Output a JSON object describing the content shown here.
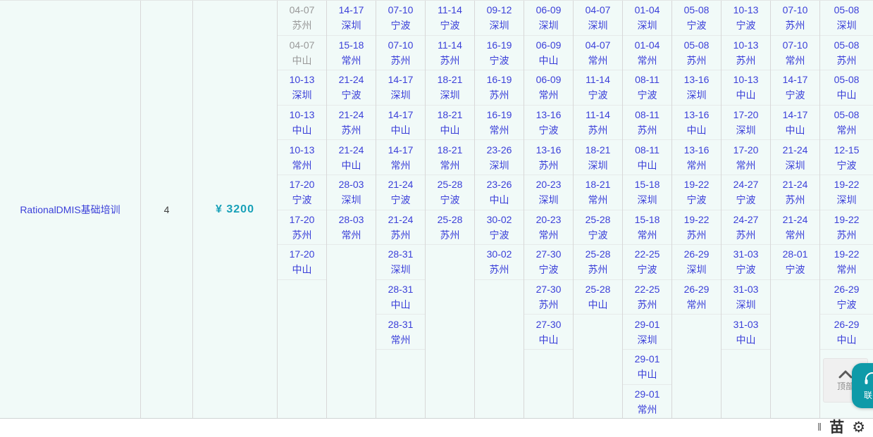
{
  "colors": {
    "accent": "#3a3fd9",
    "muted": "#999999",
    "price": "#17a0b8",
    "teal": "#0e9aa8",
    "table_bg": "#f1faf8"
  },
  "course": {
    "name": "RationalDMIS基础培训",
    "days": "4",
    "price": "¥ 3200"
  },
  "schedule": {
    "columns": [
      [
        {
          "d": "04-07",
          "c": "苏州",
          "muted": true
        },
        {
          "d": "04-07",
          "c": "中山",
          "muted": true
        },
        {
          "d": "10-13",
          "c": "深圳"
        },
        {
          "d": "10-13",
          "c": "中山"
        },
        {
          "d": "10-13",
          "c": "常州"
        },
        {
          "d": "17-20",
          "c": "宁波"
        },
        {
          "d": "17-20",
          "c": "苏州"
        },
        {
          "d": "17-20",
          "c": "中山"
        }
      ],
      [
        {
          "d": "14-17",
          "c": "深圳"
        },
        {
          "d": "15-18",
          "c": "常州"
        },
        {
          "d": "21-24",
          "c": "宁波"
        },
        {
          "d": "21-24",
          "c": "苏州"
        },
        {
          "d": "21-24",
          "c": "中山"
        },
        {
          "d": "28-03",
          "c": "深圳"
        },
        {
          "d": "28-03",
          "c": "常州"
        }
      ],
      [
        {
          "d": "07-10",
          "c": "宁波"
        },
        {
          "d": "07-10",
          "c": "苏州"
        },
        {
          "d": "14-17",
          "c": "深圳"
        },
        {
          "d": "14-17",
          "c": "中山"
        },
        {
          "d": "14-17",
          "c": "常州"
        },
        {
          "d": "21-24",
          "c": "宁波"
        },
        {
          "d": "21-24",
          "c": "苏州"
        },
        {
          "d": "28-31",
          "c": "深圳"
        },
        {
          "d": "28-31",
          "c": "中山"
        },
        {
          "d": "28-31",
          "c": "常州"
        }
      ],
      [
        {
          "d": "11-14",
          "c": "宁波"
        },
        {
          "d": "11-14",
          "c": "苏州"
        },
        {
          "d": "18-21",
          "c": "深圳"
        },
        {
          "d": "18-21",
          "c": "中山"
        },
        {
          "d": "18-21",
          "c": "常州"
        },
        {
          "d": "25-28",
          "c": "宁波"
        },
        {
          "d": "25-28",
          "c": "苏州"
        }
      ],
      [
        {
          "d": "09-12",
          "c": "深圳"
        },
        {
          "d": "16-19",
          "c": "宁波"
        },
        {
          "d": "16-19",
          "c": "苏州"
        },
        {
          "d": "16-19",
          "c": "常州"
        },
        {
          "d": "23-26",
          "c": "深圳"
        },
        {
          "d": "23-26",
          "c": "中山"
        },
        {
          "d": "30-02",
          "c": "宁波"
        },
        {
          "d": "30-02",
          "c": "苏州"
        }
      ],
      [
        {
          "d": "06-09",
          "c": "深圳"
        },
        {
          "d": "06-09",
          "c": "中山"
        },
        {
          "d": "06-09",
          "c": "常州"
        },
        {
          "d": "13-16",
          "c": "宁波"
        },
        {
          "d": "13-16",
          "c": "苏州"
        },
        {
          "d": "20-23",
          "c": "深圳"
        },
        {
          "d": "20-23",
          "c": "常州"
        },
        {
          "d": "27-30",
          "c": "宁波"
        },
        {
          "d": "27-30",
          "c": "苏州"
        },
        {
          "d": "27-30",
          "c": "中山"
        }
      ],
      [
        {
          "d": "04-07",
          "c": "深圳"
        },
        {
          "d": "04-07",
          "c": "常州"
        },
        {
          "d": "11-14",
          "c": "宁波"
        },
        {
          "d": "11-14",
          "c": "苏州"
        },
        {
          "d": "18-21",
          "c": "深圳"
        },
        {
          "d": "18-21",
          "c": "常州"
        },
        {
          "d": "25-28",
          "c": "宁波"
        },
        {
          "d": "25-28",
          "c": "苏州"
        },
        {
          "d": "25-28",
          "c": "中山"
        }
      ],
      [
        {
          "d": "01-04",
          "c": "深圳"
        },
        {
          "d": "01-04",
          "c": "常州"
        },
        {
          "d": "08-11",
          "c": "宁波"
        },
        {
          "d": "08-11",
          "c": "苏州"
        },
        {
          "d": "08-11",
          "c": "中山"
        },
        {
          "d": "15-18",
          "c": "深圳"
        },
        {
          "d": "15-18",
          "c": "常州"
        },
        {
          "d": "22-25",
          "c": "宁波"
        },
        {
          "d": "22-25",
          "c": "苏州"
        },
        {
          "d": "29-01",
          "c": "深圳"
        },
        {
          "d": "29-01",
          "c": "中山"
        },
        {
          "d": "29-01",
          "c": "常州"
        }
      ],
      [
        {
          "d": "05-08",
          "c": "宁波"
        },
        {
          "d": "05-08",
          "c": "苏州"
        },
        {
          "d": "13-16",
          "c": "深圳"
        },
        {
          "d": "13-16",
          "c": "中山"
        },
        {
          "d": "13-16",
          "c": "常州"
        },
        {
          "d": "19-22",
          "c": "宁波"
        },
        {
          "d": "19-22",
          "c": "苏州"
        },
        {
          "d": "26-29",
          "c": "深圳"
        },
        {
          "d": "26-29",
          "c": "常州"
        }
      ],
      [
        {
          "d": "10-13",
          "c": "宁波"
        },
        {
          "d": "10-13",
          "c": "苏州"
        },
        {
          "d": "10-13",
          "c": "中山"
        },
        {
          "d": "17-20",
          "c": "深圳"
        },
        {
          "d": "17-20",
          "c": "常州"
        },
        {
          "d": "24-27",
          "c": "宁波"
        },
        {
          "d": "24-27",
          "c": "苏州"
        },
        {
          "d": "31-03",
          "c": "宁波"
        },
        {
          "d": "31-03",
          "c": "深圳"
        },
        {
          "d": "31-03",
          "c": "中山"
        }
      ],
      [
        {
          "d": "07-10",
          "c": "苏州"
        },
        {
          "d": "07-10",
          "c": "常州"
        },
        {
          "d": "14-17",
          "c": "宁波"
        },
        {
          "d": "14-17",
          "c": "中山"
        },
        {
          "d": "21-24",
          "c": "深圳"
        },
        {
          "d": "21-24",
          "c": "苏州"
        },
        {
          "d": "21-24",
          "c": "常州"
        },
        {
          "d": "28-01",
          "c": "宁波"
        }
      ],
      [
        {
          "d": "05-08",
          "c": "深圳"
        },
        {
          "d": "05-08",
          "c": "苏州"
        },
        {
          "d": "05-08",
          "c": "中山"
        },
        {
          "d": "05-08",
          "c": "常州"
        },
        {
          "d": "12-15",
          "c": "宁波"
        },
        {
          "d": "19-22",
          "c": "深圳"
        },
        {
          "d": "19-22",
          "c": "苏州"
        },
        {
          "d": "19-22",
          "c": "常州"
        },
        {
          "d": "26-29",
          "c": "宁波"
        },
        {
          "d": "26-29",
          "c": "中山"
        }
      ]
    ]
  },
  "widgets": {
    "back_to_top_label": "顶部",
    "contact_label": "联系",
    "ime": {
      "handle": "‖",
      "lang": "苗",
      "gear": "⚙"
    }
  }
}
